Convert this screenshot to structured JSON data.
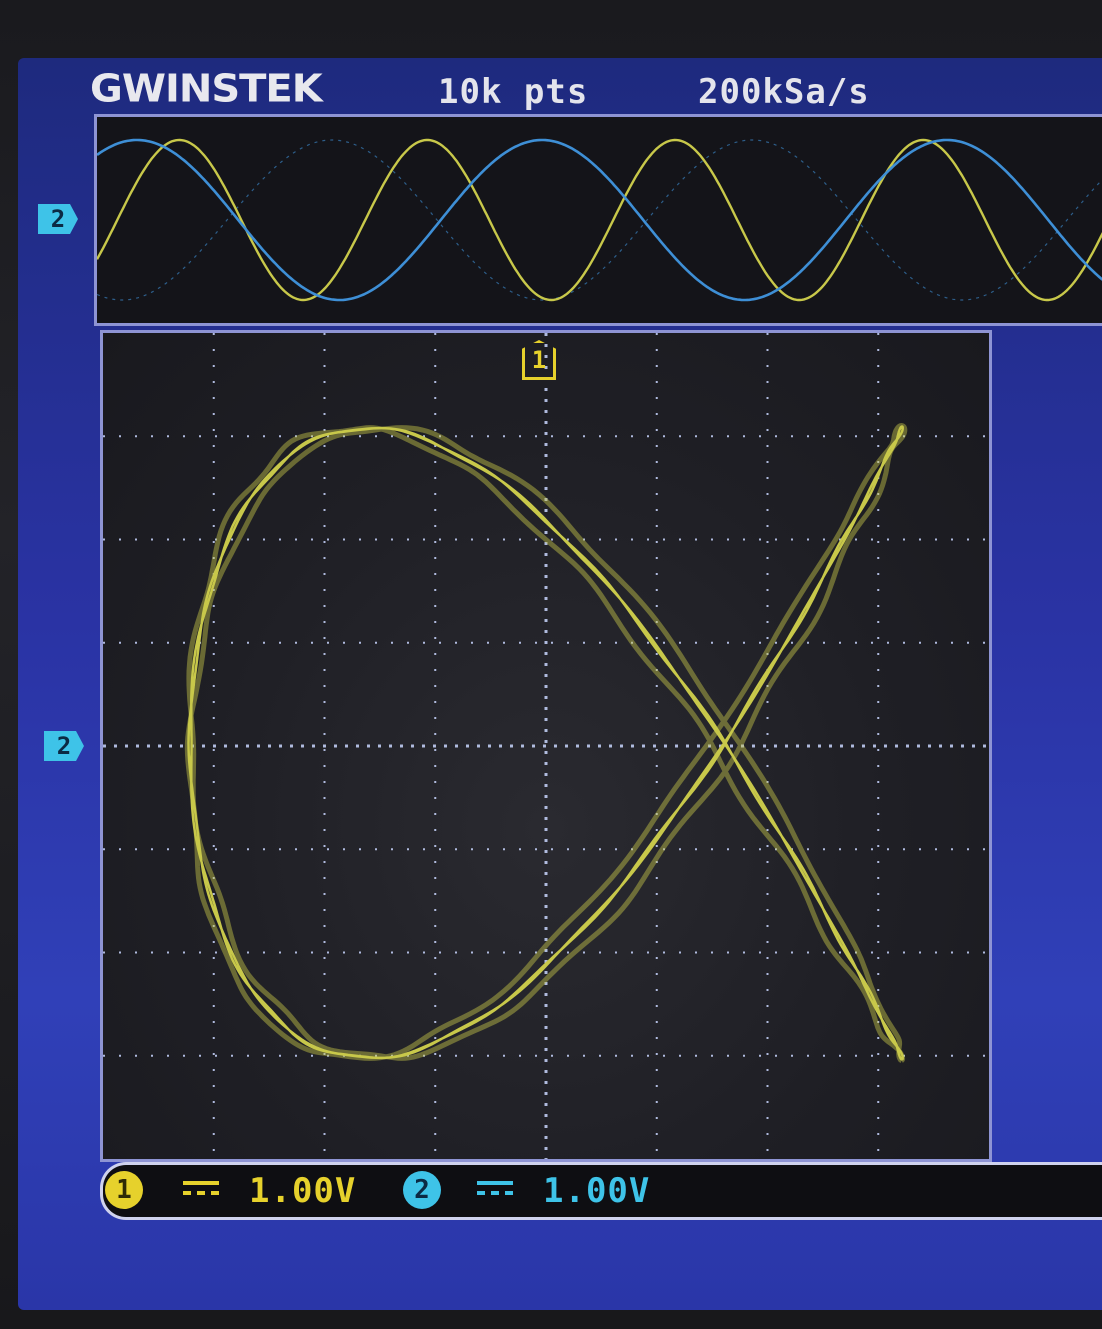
{
  "header": {
    "brand": "GWINSTEK",
    "record_length": "10k pts",
    "sample_rate": "200kSa/s"
  },
  "markers": {
    "ch2_offset_zoom": "2",
    "ch2_offset_xy": "2",
    "trigger": "1"
  },
  "status_bar": {
    "ch1": {
      "number": "1",
      "scale": "1.00V",
      "coupling_icon": "dc-coupling-icon"
    },
    "ch2": {
      "number": "2",
      "scale": "1.00V",
      "coupling_icon": "dc-coupling-icon"
    }
  },
  "colors": {
    "ch1": "#c8c84a",
    "ch2": "#3e8fd6",
    "grid": "#c9d6ff",
    "screen_bg": "#2a33a4"
  },
  "display": {
    "mode": "XY",
    "grid_divisions_x": 8,
    "grid_divisions_y": 8
  }
}
